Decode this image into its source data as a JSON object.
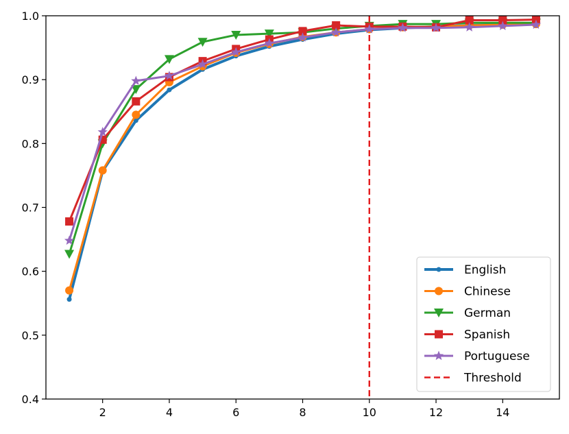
{
  "chart_data": {
    "type": "line",
    "title": "",
    "xlabel": "",
    "ylabel": "",
    "xlim": [
      0.3,
      15.7
    ],
    "ylim": [
      0.4,
      1.0
    ],
    "xticks": [
      2,
      4,
      6,
      8,
      10,
      12,
      14
    ],
    "yticks": [
      0.4,
      0.5,
      0.6,
      0.7,
      0.8,
      0.9,
      1.0
    ],
    "xtick_labels": [
      "2",
      "4",
      "6",
      "8",
      "10",
      "12",
      "14"
    ],
    "ytick_labels": [
      "0.4",
      "0.5",
      "0.6",
      "0.7",
      "0.8",
      "0.9",
      "1.0"
    ],
    "x": [
      1,
      2,
      3,
      4,
      5,
      6,
      7,
      8,
      9,
      10,
      11,
      12,
      13,
      14,
      15
    ],
    "series": [
      {
        "name": "English",
        "color": "#1f77b4",
        "marker": "point",
        "values": [
          0.556,
          0.757,
          0.836,
          0.884,
          0.916,
          0.937,
          0.952,
          0.963,
          0.972,
          0.978,
          0.981,
          0.983,
          0.985,
          0.986,
          0.988
        ]
      },
      {
        "name": "Chinese",
        "color": "#ff7f0e",
        "marker": "circle",
        "values": [
          0.57,
          0.758,
          0.845,
          0.896,
          0.921,
          0.942,
          0.956,
          0.967,
          0.974,
          0.979,
          0.982,
          0.983,
          0.985,
          0.986,
          0.987
        ]
      },
      {
        "name": "German",
        "color": "#2ca02c",
        "marker": "triangle-down",
        "values": [
          0.627,
          0.8,
          0.885,
          0.932,
          0.959,
          0.97,
          0.972,
          0.974,
          0.98,
          0.984,
          0.987,
          0.987,
          0.989,
          0.989,
          0.989
        ]
      },
      {
        "name": "Spanish",
        "color": "#d62728",
        "marker": "square",
        "values": [
          0.678,
          0.806,
          0.866,
          0.904,
          0.929,
          0.948,
          0.963,
          0.976,
          0.985,
          0.983,
          0.983,
          0.982,
          0.993,
          0.993,
          0.994
        ]
      },
      {
        "name": "Portuguese",
        "color": "#9467bd",
        "marker": "star",
        "values": [
          0.648,
          0.818,
          0.898,
          0.906,
          0.924,
          0.943,
          0.957,
          0.966,
          0.974,
          0.979,
          0.981,
          0.981,
          0.982,
          0.984,
          0.986
        ]
      }
    ],
    "threshold": {
      "name": "Threshold",
      "x": 10,
      "color": "#e31a1c",
      "style": "dashed"
    },
    "legend": {
      "position": "lower-right",
      "entries": [
        "English",
        "Chinese",
        "German",
        "Spanish",
        "Portuguese",
        "Threshold"
      ]
    }
  }
}
